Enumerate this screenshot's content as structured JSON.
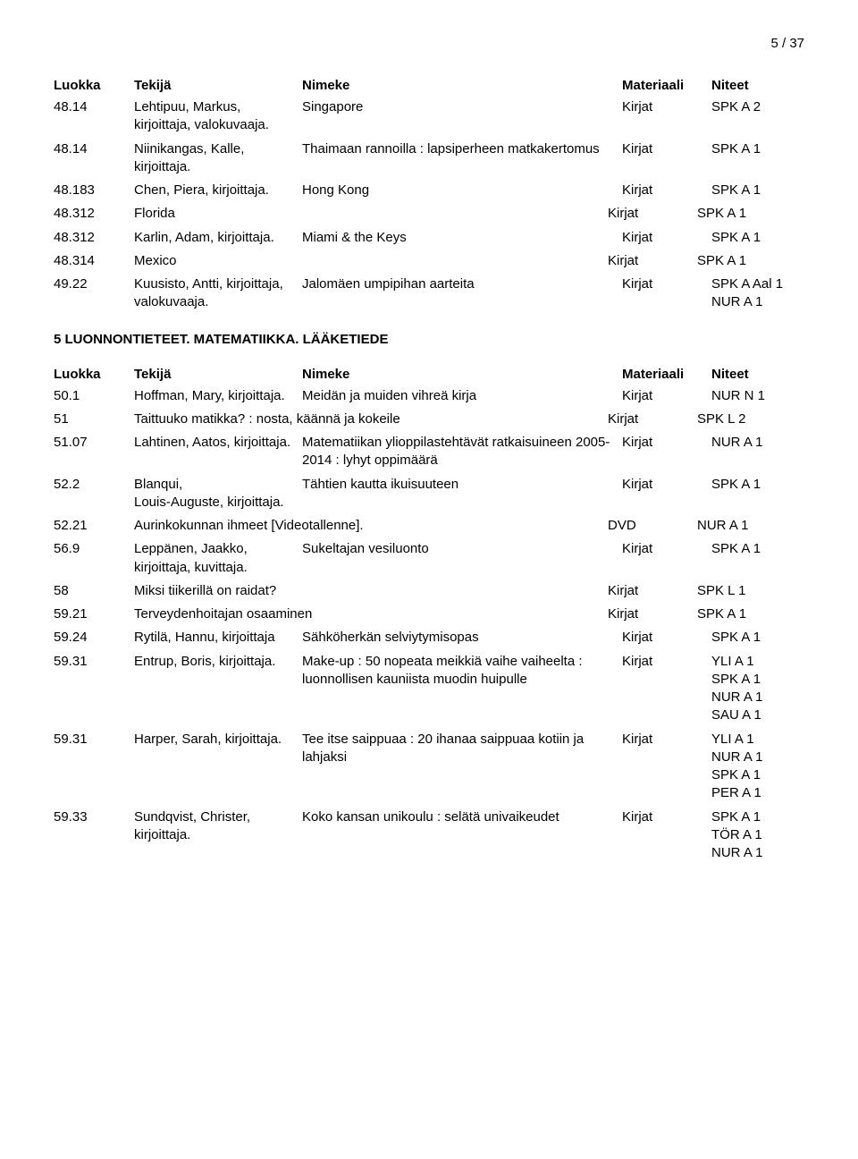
{
  "page_number": "5 / 37",
  "header": {
    "luokka": "Luokka",
    "tekija": "Tekijä",
    "nimeke": "Nimeke",
    "materiaali": "Materiaali",
    "niteet": "Niteet"
  },
  "section1_rows": [
    {
      "luokka": "48.14",
      "tekija": "Lehtipuu, Markus, kirjoittaja, valokuvaaja.",
      "nimeke": "Singapore",
      "materiaali": "Kirjat",
      "niteet": "SPK A 2"
    },
    {
      "luokka": "48.14",
      "tekija": "Niinikangas, Kalle, kirjoittaja.",
      "nimeke": "Thaimaan rannoilla : lapsiperheen matkakertomus",
      "materiaali": "Kirjat",
      "niteet": "SPK A 1"
    },
    {
      "luokka": "48.183",
      "tekija": "Chen, Piera, kirjoittaja.",
      "nimeke": "Hong Kong",
      "materiaali": "Kirjat",
      "niteet": "SPK A 1"
    },
    {
      "luokka": "48.312",
      "tekija": "",
      "nimeke": "Florida",
      "materiaali": "Kirjat",
      "niteet": "SPK A 1"
    },
    {
      "luokka": "48.312",
      "tekija": "Karlin, Adam, kirjoittaja.",
      "nimeke": "Miami & the Keys",
      "materiaali": "Kirjat",
      "niteet": "SPK A 1"
    },
    {
      "luokka": "48.314",
      "tekija": "",
      "nimeke": "Mexico",
      "materiaali": "Kirjat",
      "niteet": "SPK A 1"
    },
    {
      "luokka": "49.22",
      "tekija": "Kuusisto, Antti, kirjoittaja, valokuvaaja.",
      "nimeke": "Jalomäen umpipihan aarteita",
      "materiaali": "Kirjat",
      "niteet": "SPK A Aal 1\nNUR A 1"
    }
  ],
  "section2_title": "5 LUONNONTIETEET. MATEMATIIKKA. LÄÄKETIEDE",
  "section2_rows": [
    {
      "luokka": "50.1",
      "tekija": "Hoffman, Mary, kirjoittaja.",
      "nimeke": "Meidän ja muiden vihreä kirja",
      "materiaali": "Kirjat",
      "niteet": "NUR N 1"
    },
    {
      "luokka": "51",
      "tekija": "",
      "nimeke": "Taittuuko matikka? : nosta, käännä ja kokeile",
      "materiaali": "Kirjat",
      "niteet": "SPK L 2"
    },
    {
      "luokka": "51.07",
      "tekija": "Lahtinen, Aatos, kirjoittaja.",
      "nimeke": "Matematiikan ylioppilastehtävät ratkaisuineen 2005-2014 : lyhyt oppimäärä",
      "materiaali": "Kirjat",
      "niteet": "NUR A 1"
    },
    {
      "luokka": "52.2",
      "tekija": "Blanqui,\nLouis-Auguste, kirjoittaja.",
      "nimeke": "Tähtien kautta ikuisuuteen",
      "materiaali": "Kirjat",
      "niteet": "SPK A 1"
    },
    {
      "luokka": "52.21",
      "tekija": "",
      "nimeke": "Aurinkokunnan ihmeet [Videotallenne].",
      "materiaali": "DVD",
      "niteet": "NUR A 1"
    },
    {
      "luokka": "56.9",
      "tekija": "Leppänen, Jaakko, kirjoittaja, kuvittaja.",
      "nimeke": "Sukeltajan vesiluonto",
      "materiaali": "Kirjat",
      "niteet": "SPK A 1"
    },
    {
      "luokka": "58",
      "tekija": "",
      "nimeke": "Miksi tiikerillä on raidat?",
      "materiaali": "Kirjat",
      "niteet": "SPK L 1"
    },
    {
      "luokka": "59.21",
      "tekija": "",
      "nimeke": "Terveydenhoitajan osaaminen",
      "materiaali": "Kirjat",
      "niteet": "SPK A 1"
    },
    {
      "luokka": "59.24",
      "tekija": "Rytilä, Hannu, kirjoittaja",
      "nimeke": "Sähköherkän selviytymisopas",
      "materiaali": "Kirjat",
      "niteet": "SPK A 1"
    },
    {
      "luokka": "59.31",
      "tekija": "Entrup, Boris, kirjoittaja.",
      "nimeke": "Make-up : 50 nopeata meikkiä vaihe vaiheelta : luonnollisen kauniista muodin huipulle",
      "materiaali": "Kirjat",
      "niteet": "YLI A 1\nSPK A 1\nNUR A 1\nSAU A 1"
    },
    {
      "luokka": "59.31",
      "tekija": "Harper, Sarah, kirjoittaja.",
      "nimeke": "Tee itse saippuaa : 20 ihanaa saippuaa kotiin ja lahjaksi",
      "materiaali": "Kirjat",
      "niteet": "YLI A 1\nNUR A 1\nSPK A 1\nPER A 1"
    },
    {
      "luokka": "59.33",
      "tekija": "Sundqvist, Christer, kirjoittaja.",
      "nimeke": "Koko kansan unikoulu : selätä univaikeudet",
      "materiaali": "Kirjat",
      "niteet": "SPK A 1\nTÖR A 1\nNUR A 1"
    }
  ]
}
